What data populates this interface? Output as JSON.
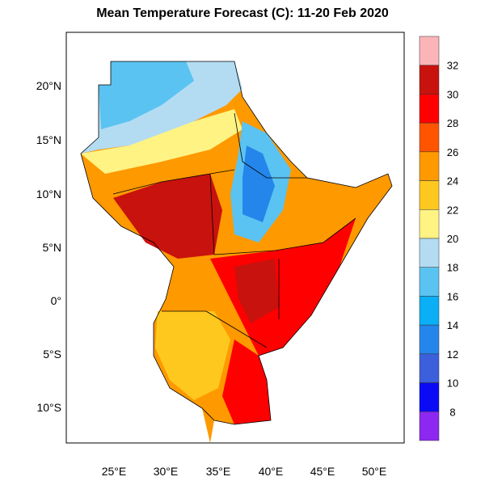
{
  "title": "Mean Temperature Forecast (C):  11-20 Feb 2020",
  "map": {
    "lon_ticks": [
      "25°E",
      "30°E",
      "35°E",
      "40°E",
      "45°E",
      "50°E"
    ],
    "lat_ticks": [
      "20°N",
      "15°N",
      "10°N",
      "5°N",
      "0°",
      "5°S",
      "10°S"
    ]
  },
  "colorbar": {
    "labels": [
      "32",
      "30",
      "28",
      "26",
      "24",
      "22",
      "20",
      "18",
      "16",
      "14",
      "12",
      "10",
      "8"
    ],
    "colors": [
      "#fbb4b8",
      "#c8120e",
      "#ff0000",
      "#ff5500",
      "#ff9900",
      "#ffc81e",
      "#fff384",
      "#b3dcf2",
      "#5ac3f2",
      "#0aaff5",
      "#2486ea",
      "#3c5fdc",
      "#0a0af5",
      "#8c28f0"
    ]
  }
}
